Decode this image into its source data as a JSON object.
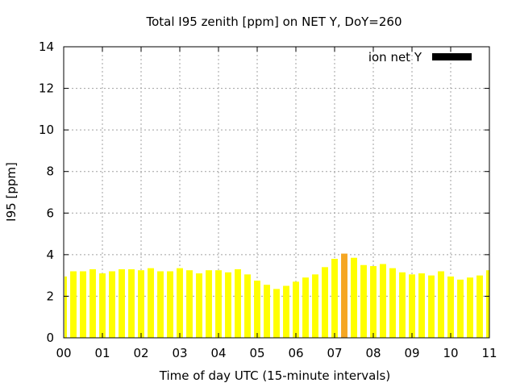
{
  "chart_data": {
    "type": "bar",
    "title": "Total I95 zenith [ppm] on NET Y, DoY=260",
    "xlabel": "Time of day UTC (15-minute intervals)",
    "ylabel": "I95 [ppm]",
    "ylim": [
      0,
      14
    ],
    "xlim": [
      0,
      11
    ],
    "yticks": [
      "0",
      "2",
      "4",
      "6",
      "8",
      "10",
      "12",
      "14"
    ],
    "xticks": [
      "00",
      "01",
      "02",
      "03",
      "04",
      "05",
      "06",
      "07",
      "08",
      "09",
      "10",
      "11"
    ],
    "grid": true,
    "legend_position": "top-right",
    "series": [
      {
        "name": "ion net Y",
        "legend_color": "#000000",
        "bar_color": "#ffff00",
        "highlight_color": "#f5a623",
        "x": [
          0.0,
          0.25,
          0.5,
          0.75,
          1.0,
          1.25,
          1.5,
          1.75,
          2.0,
          2.25,
          2.5,
          2.75,
          3.0,
          3.25,
          3.5,
          3.75,
          4.0,
          4.25,
          4.5,
          4.75,
          5.0,
          5.25,
          5.5,
          5.75,
          6.0,
          6.25,
          6.5,
          6.75,
          7.0,
          7.25,
          7.5,
          7.75,
          8.0,
          8.25,
          8.5,
          8.75,
          9.0,
          9.25,
          9.5,
          9.75,
          10.0,
          10.25,
          10.5,
          10.75,
          11.0
        ],
        "values": [
          2.95,
          3.2,
          3.2,
          3.3,
          3.1,
          3.2,
          3.3,
          3.3,
          3.25,
          3.35,
          3.2,
          3.2,
          3.35,
          3.25,
          3.1,
          3.25,
          3.25,
          3.15,
          3.3,
          3.05,
          2.75,
          2.55,
          2.35,
          2.5,
          2.7,
          2.9,
          3.05,
          3.4,
          3.8,
          4.05,
          3.85,
          3.5,
          3.45,
          3.55,
          3.35,
          3.15,
          3.05,
          3.1,
          3.0,
          3.2,
          2.95,
          2.8,
          2.9,
          3.0,
          3.25
        ],
        "highlight_index": 29
      }
    ]
  }
}
